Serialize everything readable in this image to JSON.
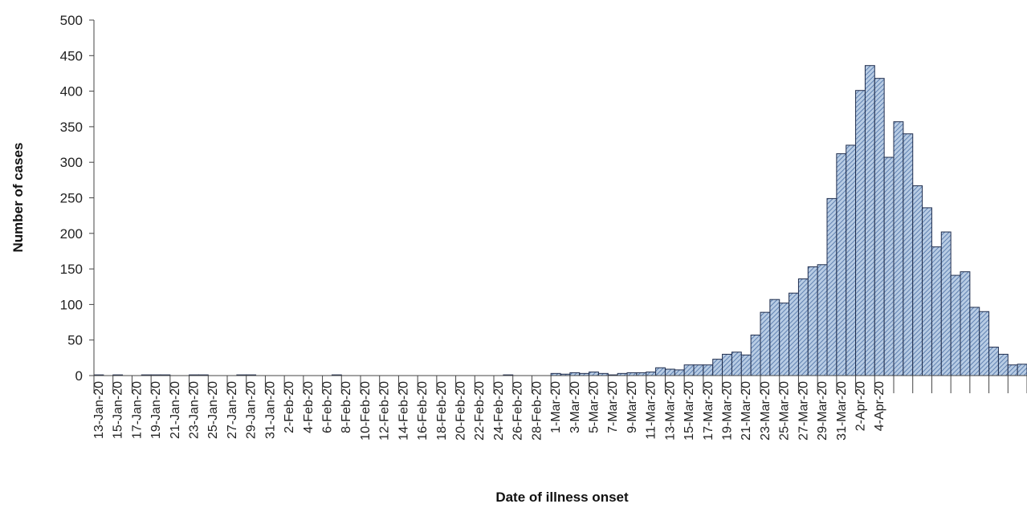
{
  "chart_data": {
    "type": "bar",
    "xlabel": "Date of illness onset",
    "ylabel": "Number of cases",
    "ylim": [
      0,
      500
    ],
    "yticks": [
      0,
      50,
      100,
      150,
      200,
      250,
      300,
      350,
      400,
      450,
      500
    ],
    "grid": false,
    "legend": "none",
    "bar_fill": "#b8cce4",
    "bar_hatch": "#4a6fa5",
    "bar_stroke": "#1f2d4d",
    "tick_labels": [
      "13-Jan-20",
      "15-Jan-20",
      "17-Jan-20",
      "19-Jan-20",
      "21-Jan-20",
      "23-Jan-20",
      "25-Jan-20",
      "27-Jan-20",
      "29-Jan-20",
      "31-Jan-20",
      "2-Feb-20",
      "4-Feb-20",
      "6-Feb-20",
      "8-Feb-20",
      "10-Feb-20",
      "12-Feb-20",
      "14-Feb-20",
      "16-Feb-20",
      "18-Feb-20",
      "20-Feb-20",
      "22-Feb-20",
      "24-Feb-20",
      "26-Feb-20",
      "28-Feb-20",
      "1-Mar-20",
      "3-Mar-20",
      "5-Mar-20",
      "7-Mar-20",
      "9-Mar-20",
      "11-Mar-20",
      "13-Mar-20",
      "15-Mar-20",
      "17-Mar-20",
      "19-Mar-20",
      "21-Mar-20",
      "23-Mar-20",
      "25-Mar-20",
      "27-Mar-20",
      "29-Mar-20",
      "31-Mar-20",
      "2-Apr-20",
      "4-Apr-20"
    ],
    "series": [
      {
        "values": [
          1,
          0,
          1,
          0,
          0,
          1,
          1,
          1,
          0,
          0,
          1,
          1,
          0,
          0,
          0,
          1,
          1,
          0,
          0,
          0,
          0,
          0,
          0,
          0,
          0,
          1,
          0,
          0,
          0,
          0,
          0,
          0,
          0,
          0,
          0,
          0,
          0,
          0,
          0,
          0,
          0,
          0,
          0,
          1,
          0,
          0,
          0,
          0,
          3,
          2,
          4,
          3,
          5,
          3,
          1,
          3,
          4,
          4,
          5,
          11,
          9,
          8,
          15,
          15,
          15,
          23,
          30,
          33,
          29,
          57,
          89,
          107,
          102,
          116,
          136,
          153,
          156,
          249,
          312,
          324,
          401,
          436,
          418,
          307,
          357,
          340,
          267,
          236,
          181,
          202,
          141,
          146,
          96,
          90,
          40,
          30,
          15,
          16
        ]
      }
    ]
  }
}
